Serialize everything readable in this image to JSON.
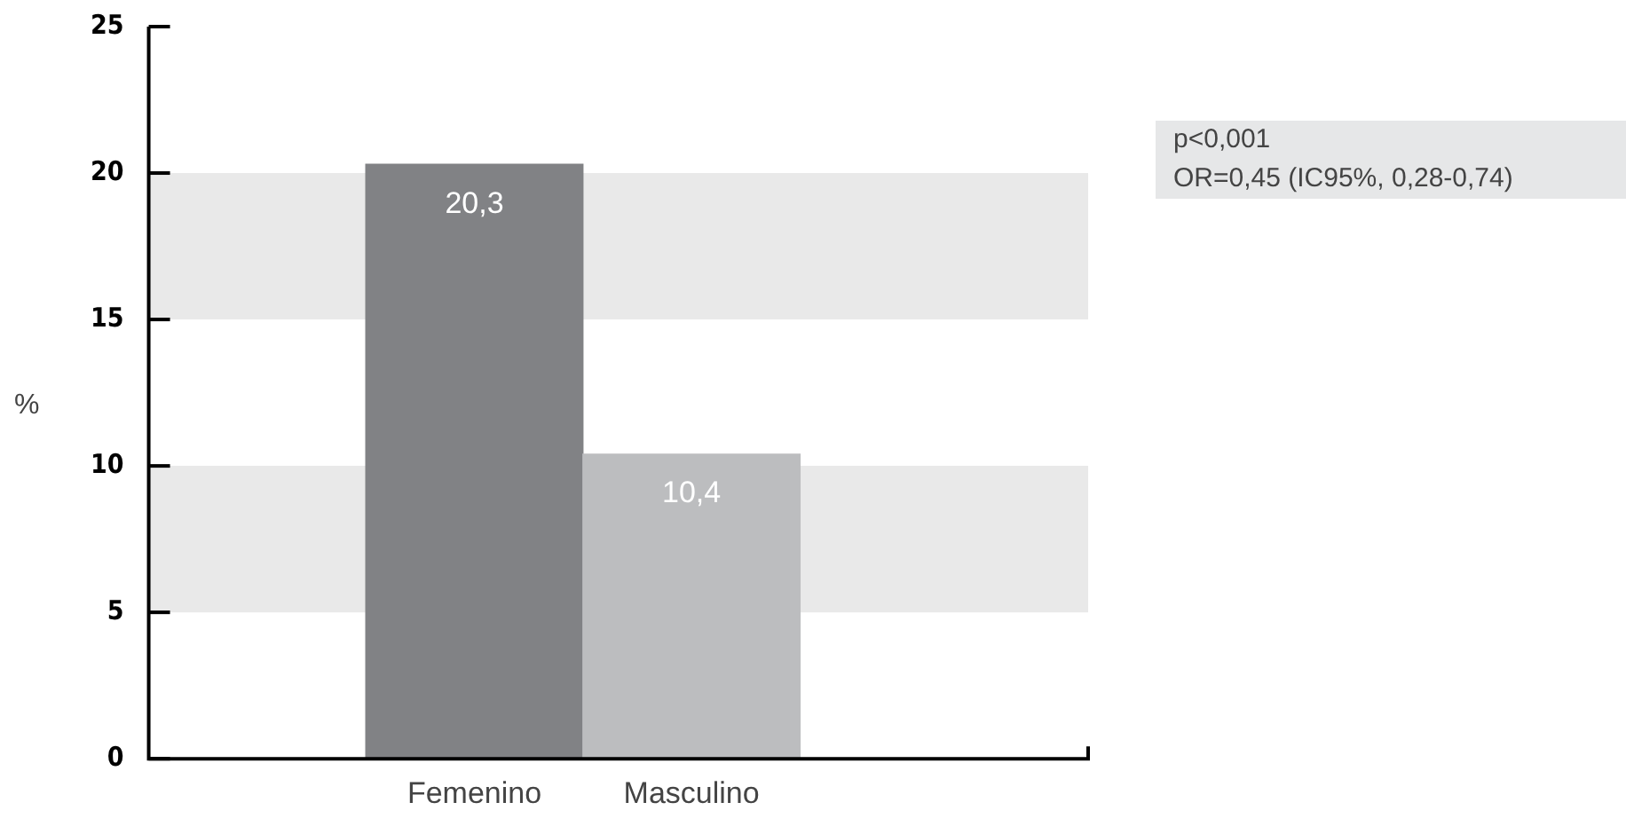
{
  "chart_data": {
    "type": "bar",
    "categories": [
      null,
      "Femenino",
      "Masculino",
      null
    ],
    "values": [
      null,
      20.3,
      10.4,
      null
    ],
    "colors": [
      "#818285",
      "#818285",
      "#bcbdbf",
      "#bcbdbf"
    ],
    "value_labels": [
      null,
      "20,3",
      "10,4",
      null
    ],
    "ylabel": "%",
    "ylim": [
      0,
      25
    ],
    "yticks": [
      0,
      5,
      10,
      15,
      20,
      25
    ],
    "grid": false,
    "legend": false,
    "bands": [
      {
        "axis": "y",
        "from": 5,
        "to": 10,
        "color": "#e9e9e9"
      },
      {
        "axis": "y",
        "from": 15,
        "to": 20,
        "color": "#e9e9e9"
      }
    ],
    "annotations": [
      "p<0,001",
      "OR=0,45 (IC95%, 0,28-0,74)"
    ]
  }
}
